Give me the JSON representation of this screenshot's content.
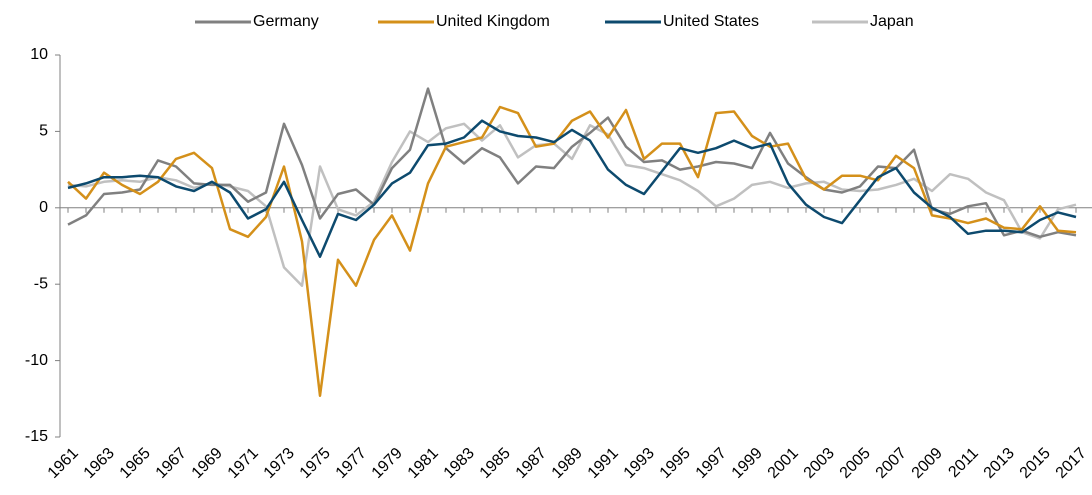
{
  "chart_data": {
    "type": "line",
    "x": [
      1961,
      1962,
      1963,
      1964,
      1965,
      1966,
      1967,
      1968,
      1969,
      1970,
      1971,
      1972,
      1973,
      1974,
      1975,
      1976,
      1977,
      1978,
      1979,
      1980,
      1981,
      1982,
      1983,
      1984,
      1985,
      1986,
      1987,
      1988,
      1989,
      1990,
      1991,
      1992,
      1993,
      1994,
      1995,
      1996,
      1997,
      1998,
      1999,
      2000,
      2001,
      2002,
      2003,
      2004,
      2005,
      2006,
      2007,
      2008,
      2009,
      2010,
      2011,
      2012,
      2013,
      2014,
      2015,
      2016,
      2017
    ],
    "series": [
      {
        "name": "Germany",
        "color": "#808080",
        "values": [
          -1.1,
          -0.5,
          0.9,
          1.0,
          1.2,
          3.1,
          2.7,
          1.6,
          1.5,
          1.5,
          0.4,
          1.0,
          5.5,
          2.8,
          -0.7,
          0.9,
          1.2,
          0.2,
          2.6,
          3.8,
          7.8,
          3.9,
          2.9,
          3.9,
          3.3,
          1.6,
          2.7,
          2.6,
          4.0,
          4.9,
          5.9,
          4.0,
          3.0,
          3.1,
          2.5,
          2.7,
          3.0,
          2.9,
          2.6,
          4.9,
          2.9,
          2.0,
          1.2,
          1.0,
          1.4,
          2.7,
          2.6,
          3.8,
          -0.1,
          -0.4,
          0.1,
          0.3,
          -1.8,
          -1.5,
          -1.9,
          -1.6,
          -1.8
        ]
      },
      {
        "name": "United Kingdom",
        "color": "#d4901a",
        "values": [
          1.7,
          0.6,
          2.3,
          1.5,
          0.9,
          1.7,
          3.2,
          3.6,
          2.6,
          -1.4,
          -1.9,
          -0.6,
          2.7,
          -2.2,
          -12.3,
          -3.4,
          -5.1,
          -2.1,
          -0.5,
          -2.8,
          1.6,
          4.0,
          4.3,
          4.6,
          6.6,
          6.2,
          4.0,
          4.2,
          5.7,
          6.3,
          4.6,
          6.4,
          3.2,
          4.2,
          4.2,
          2.0,
          6.2,
          6.3,
          4.7,
          4.0,
          4.2,
          1.9,
          1.2,
          2.1,
          2.1,
          1.8,
          3.4,
          2.6,
          -0.5,
          -0.7,
          -1.0,
          -0.7,
          -1.3,
          -1.4,
          0.1,
          -1.5,
          -1.6
        ]
      },
      {
        "name": "United States",
        "color": "#0d4a6e",
        "values": [
          1.3,
          1.6,
          2.0,
          2.0,
          2.1,
          2.0,
          1.4,
          1.1,
          1.7,
          1.0,
          -0.7,
          -0.1,
          1.7,
          -0.8,
          -3.2,
          -0.4,
          -0.8,
          0.2,
          1.6,
          2.3,
          4.1,
          4.2,
          4.6,
          5.7,
          5.0,
          4.7,
          4.6,
          4.3,
          5.1,
          4.4,
          2.5,
          1.5,
          0.9,
          2.4,
          3.9,
          3.6,
          3.9,
          4.4,
          3.9,
          4.2,
          1.6,
          0.2,
          -0.6,
          -1.0,
          0.5,
          2.0,
          2.6,
          1.0,
          0.0,
          -0.6,
          -1.7,
          -1.5,
          -1.5,
          -1.6,
          -0.8,
          -0.3,
          -0.6
        ]
      },
      {
        "name": "Japan",
        "color": "#c0c0c0",
        "values": [
          1.5,
          1.4,
          1.7,
          1.8,
          1.7,
          2.0,
          1.8,
          1.3,
          1.6,
          1.4,
          1.1,
          0.1,
          -3.9,
          -5.1,
          2.7,
          -0.1,
          -0.5,
          0.4,
          3.0,
          5.0,
          4.3,
          5.2,
          5.5,
          4.4,
          5.4,
          3.3,
          4.1,
          4.2,
          3.2,
          5.4,
          4.8,
          2.8,
          2.6,
          2.2,
          1.8,
          1.1,
          0.1,
          0.6,
          1.5,
          1.7,
          1.3,
          1.6,
          1.7,
          1.2,
          1.1,
          1.2,
          1.5,
          1.9,
          1.1,
          2.2,
          1.9,
          1.0,
          0.5,
          -1.6,
          -2.0,
          -0.1,
          0.2
        ]
      }
    ],
    "xlim": [
      1961,
      2017
    ],
    "xticks": [
      1961,
      1963,
      1965,
      1967,
      1969,
      1971,
      1973,
      1975,
      1977,
      1979,
      1981,
      1983,
      1985,
      1987,
      1989,
      1991,
      1993,
      1995,
      1997,
      1999,
      2001,
      2003,
      2005,
      2007,
      2009,
      2011,
      2013,
      2015,
      2017
    ],
    "ylim": [
      -15,
      10
    ],
    "yticks": [
      -15,
      -10,
      -5,
      0,
      5,
      10
    ],
    "legend": "top"
  }
}
